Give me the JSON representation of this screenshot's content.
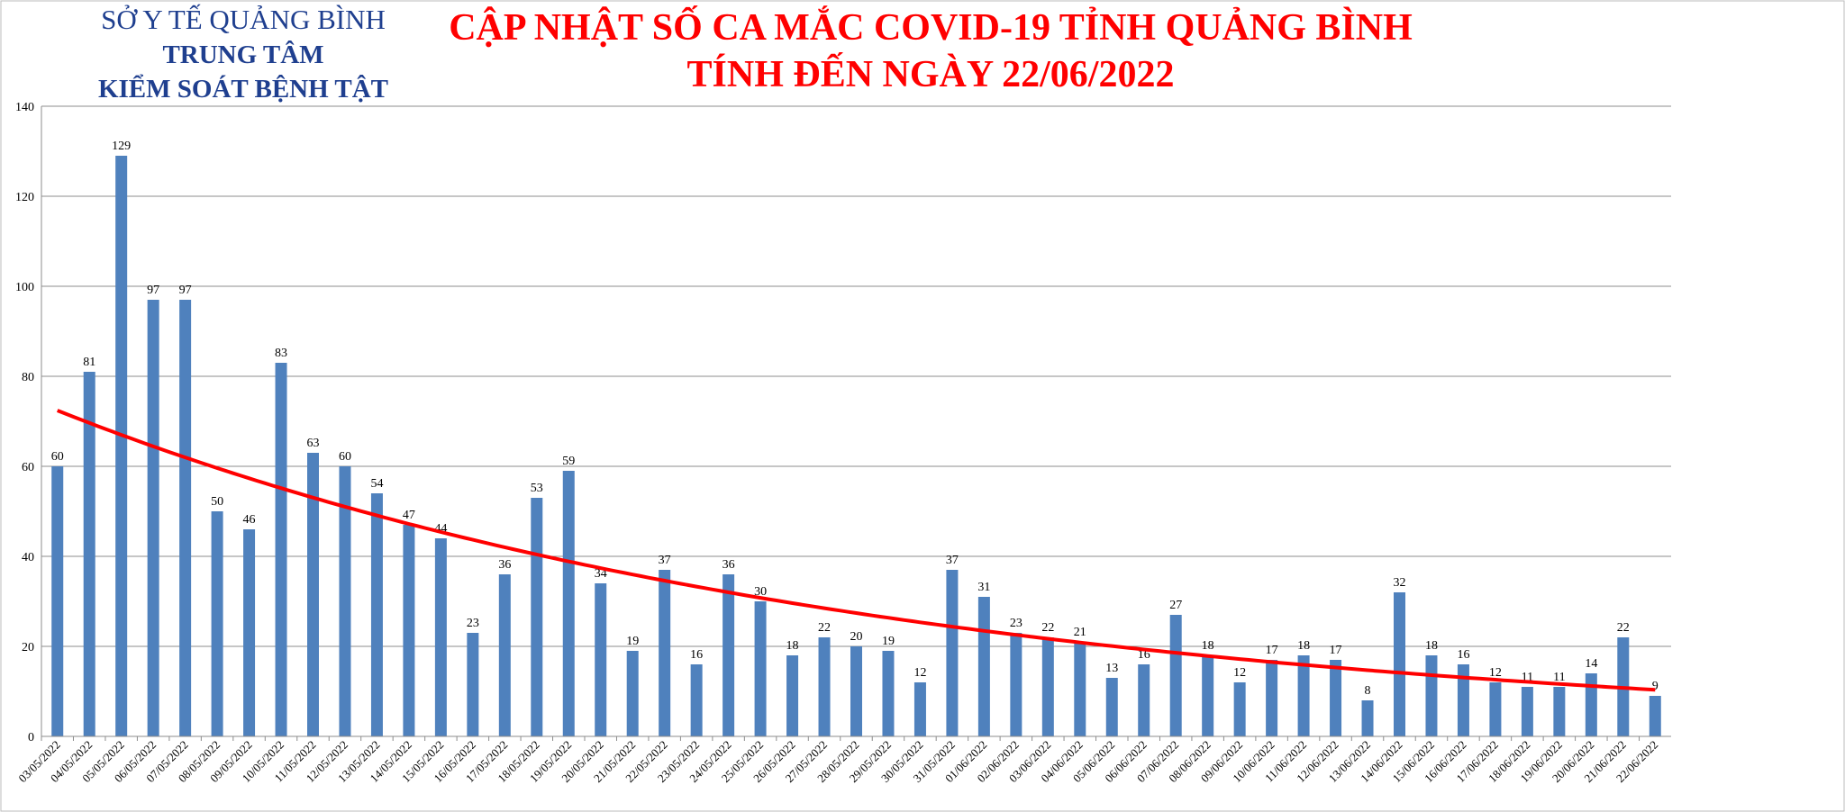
{
  "header": {
    "org": "SỞ Y TẾ QUẢNG BÌNH",
    "center": "TRUNG TÂM",
    "unit": "KIỂM SOÁT BỆNH TẬT"
  },
  "chart_data": {
    "type": "bar",
    "title": "CẬP NHẬT SỐ CA MẮC COVID-19 TỈNH QUẢNG BÌNH",
    "subtitle": "TÍNH ĐẾN NGÀY 22/06/2022",
    "categories": [
      "03/05/2022",
      "04/05/2022",
      "05/05/2022",
      "06/05/2022",
      "07/05/2022",
      "08/05/2022",
      "09/05/2022",
      "10/05/2022",
      "11/05/2022",
      "12/05/2022",
      "13/05/2022",
      "14/05/2022",
      "15/05/2022",
      "16/05/2022",
      "17/05/2022",
      "18/05/2022",
      "19/05/2022",
      "20/05/2022",
      "21/05/2022",
      "22/05/2022",
      "23/05/2022",
      "24/05/2022",
      "25/05/2022",
      "26/05/2022",
      "27/05/2022",
      "28/05/2022",
      "29/05/2022",
      "30/05/2022",
      "31/05/2022",
      "01/06/2022",
      "02/06/2022",
      "03/06/2022",
      "04/06/2022",
      "05/06/2022",
      "06/06/2022",
      "07/06/2022",
      "08/06/2022",
      "09/06/2022",
      "10/06/2022",
      "11/06/2022",
      "12/06/2022",
      "13/06/2022",
      "14/06/2022",
      "15/06/2022",
      "16/06/2022",
      "17/06/2022",
      "18/06/2022",
      "19/06/2022",
      "20/06/2022",
      "21/06/2022",
      "22/06/2022"
    ],
    "values": [
      60,
      81,
      129,
      97,
      97,
      50,
      46,
      83,
      63,
      60,
      54,
      47,
      44,
      23,
      36,
      53,
      59,
      34,
      19,
      37,
      16,
      36,
      30,
      18,
      22,
      20,
      19,
      12,
      37,
      31,
      23,
      22,
      21,
      13,
      16,
      27,
      18,
      12,
      17,
      18,
      17,
      8,
      32,
      18,
      16,
      12,
      11,
      11,
      14,
      22,
      9
    ],
    "color": "#4f81bd",
    "ylim": [
      0,
      140
    ],
    "yticks": [
      0,
      20,
      40,
      60,
      80,
      100,
      120,
      140
    ],
    "grid": true,
    "trendline": "exponential",
    "trendline_color": "#ff0000"
  }
}
